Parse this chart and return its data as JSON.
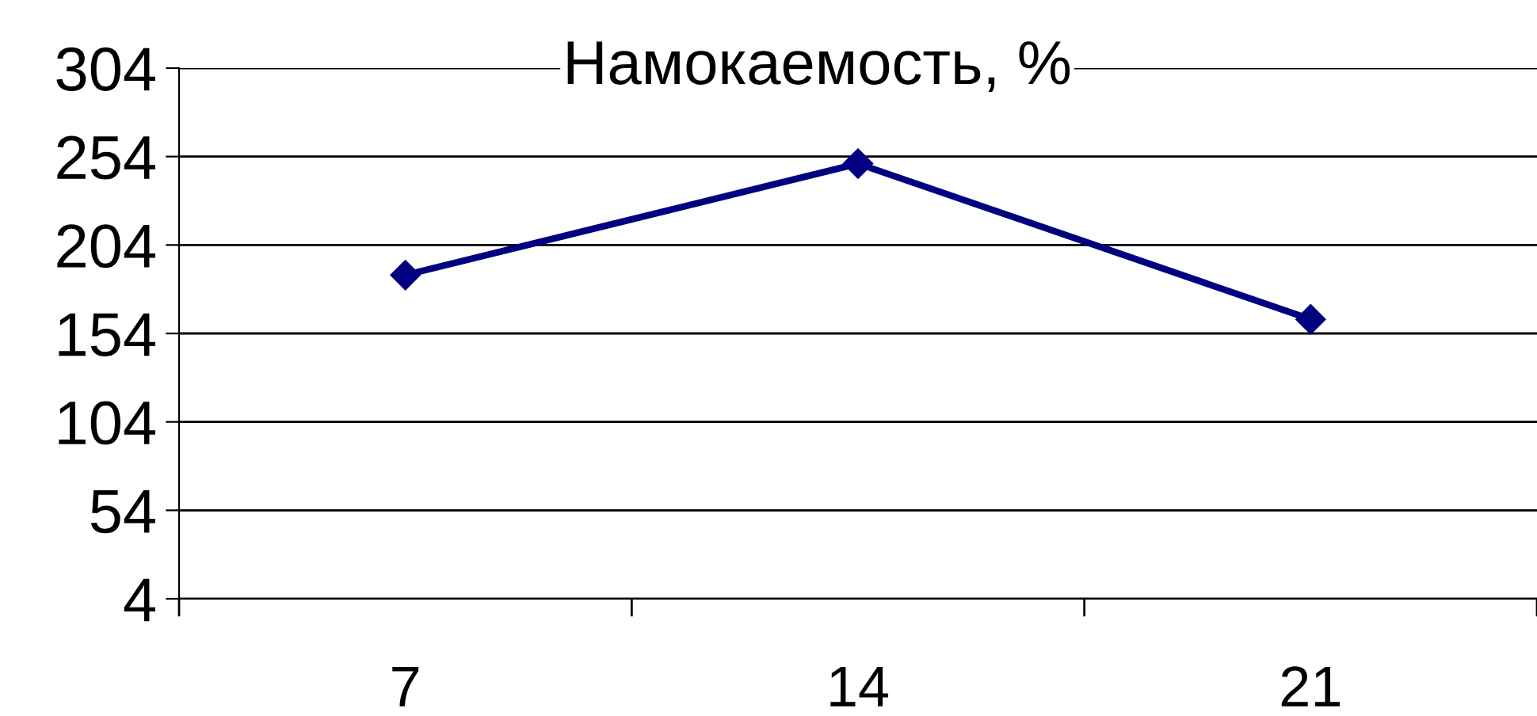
{
  "chart_data": {
    "type": "line",
    "title": "Намокаемость, %",
    "categories": [
      "7",
      "14",
      "21"
    ],
    "series": [
      {
        "color": "#000080",
        "values": [
          187,
          250,
          162
        ]
      }
    ],
    "ylim": [
      4,
      304
    ],
    "yticks": [
      4,
      54,
      104,
      154,
      204,
      254,
      304
    ],
    "grid": "y",
    "legend": false,
    "marker": "diamond",
    "line_style": "solid"
  }
}
